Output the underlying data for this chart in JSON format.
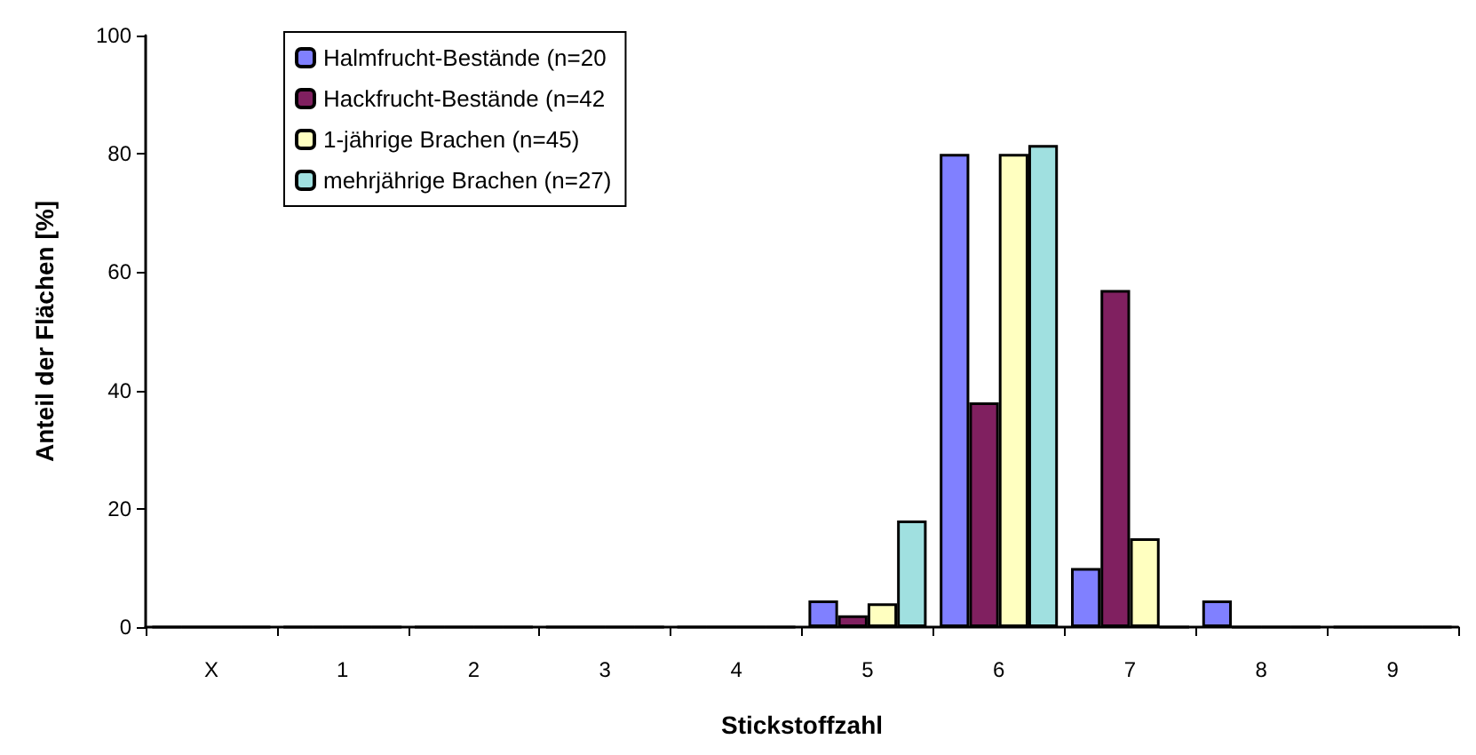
{
  "chart_data": {
    "type": "bar",
    "xlabel": "Stickstoffzahl",
    "ylabel": "Anteil der Flächen [%]",
    "categories": [
      "X",
      "1",
      "2",
      "3",
      "4",
      "5",
      "6",
      "7",
      "8",
      "9"
    ],
    "series": [
      {
        "name": "Halmfrucht-Bestände (n=20",
        "color": "#8080ff",
        "values": [
          0,
          0,
          0,
          0,
          0,
          4.5,
          80,
          10,
          4.5,
          0
        ]
      },
      {
        "name": "Hackfrucht-Bestände (n=42",
        "color": "#802060",
        "values": [
          0,
          0,
          0,
          0,
          0,
          2,
          38,
          57,
          0,
          0
        ]
      },
      {
        "name": "1-jährige Brachen (n=45)",
        "color": "#ffffc0",
        "values": [
          0,
          0,
          0,
          0,
          0,
          4,
          80,
          15,
          0,
          0
        ]
      },
      {
        "name": "mehrjährige Brachen (n=27)",
        "color": "#a0e0e0",
        "values": [
          0,
          0,
          0,
          0,
          0,
          18,
          81.5,
          0,
          0,
          0
        ]
      }
    ],
    "ylim": [
      0,
      100
    ],
    "yticks": [
      0,
      20,
      40,
      60,
      80,
      100
    ],
    "grid": false,
    "legend": "top left"
  }
}
